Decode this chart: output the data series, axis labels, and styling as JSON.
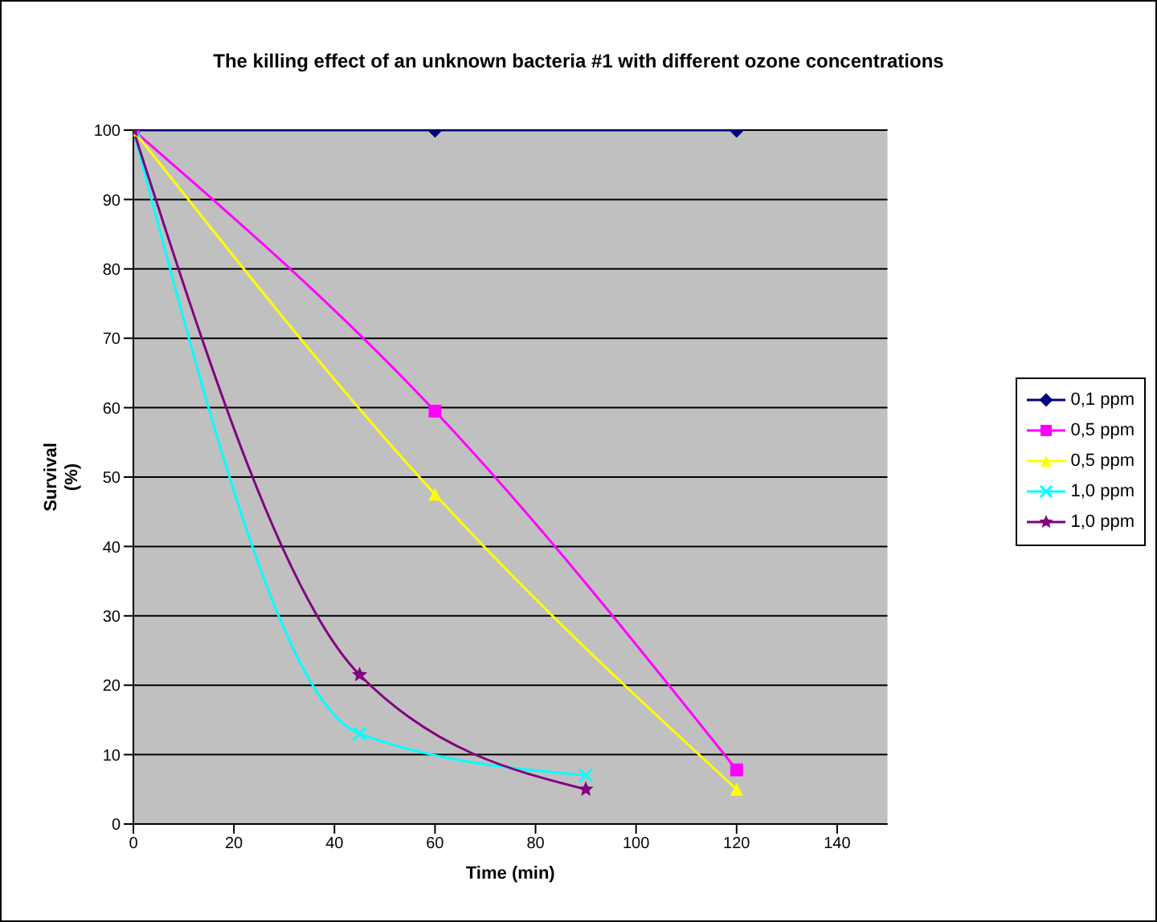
{
  "chart_data": {
    "type": "line",
    "title": "The killing effect of an unknown bacteria #1 with different ozone concentrations",
    "xlabel": "Time (min)",
    "ylabel": "Survival (%)",
    "xlim": [
      0,
      150
    ],
    "xticks": [
      0,
      20,
      40,
      60,
      80,
      100,
      120,
      140
    ],
    "ylim": [
      0,
      100
    ],
    "yticks": [
      0,
      10,
      20,
      30,
      40,
      50,
      60,
      70,
      80,
      90,
      100
    ],
    "grid": "y",
    "legend": "right",
    "series": [
      {
        "name": "0,1 ppm",
        "color": "#000080",
        "marker": "diamond",
        "x": [
          0,
          60,
          120
        ],
        "values": [
          100,
          100,
          100
        ]
      },
      {
        "name": "0,5 ppm",
        "color": "#ff00ff",
        "marker": "square",
        "x": [
          0,
          60,
          120
        ],
        "values": [
          100,
          59.5,
          7.8
        ]
      },
      {
        "name": "0,5 ppm",
        "color": "#ffff00",
        "marker": "triangle",
        "x": [
          0,
          60,
          120
        ],
        "values": [
          100,
          47.5,
          5
        ]
      },
      {
        "name": "1,0 ppm",
        "color": "#00ffff",
        "marker": "cross",
        "x": [
          0,
          45,
          90
        ],
        "values": [
          100,
          13,
          7
        ]
      },
      {
        "name": "1,0 ppm",
        "color": "#800080",
        "marker": "star",
        "x": [
          0,
          45,
          90
        ],
        "values": [
          100,
          21.5,
          5
        ]
      }
    ]
  }
}
